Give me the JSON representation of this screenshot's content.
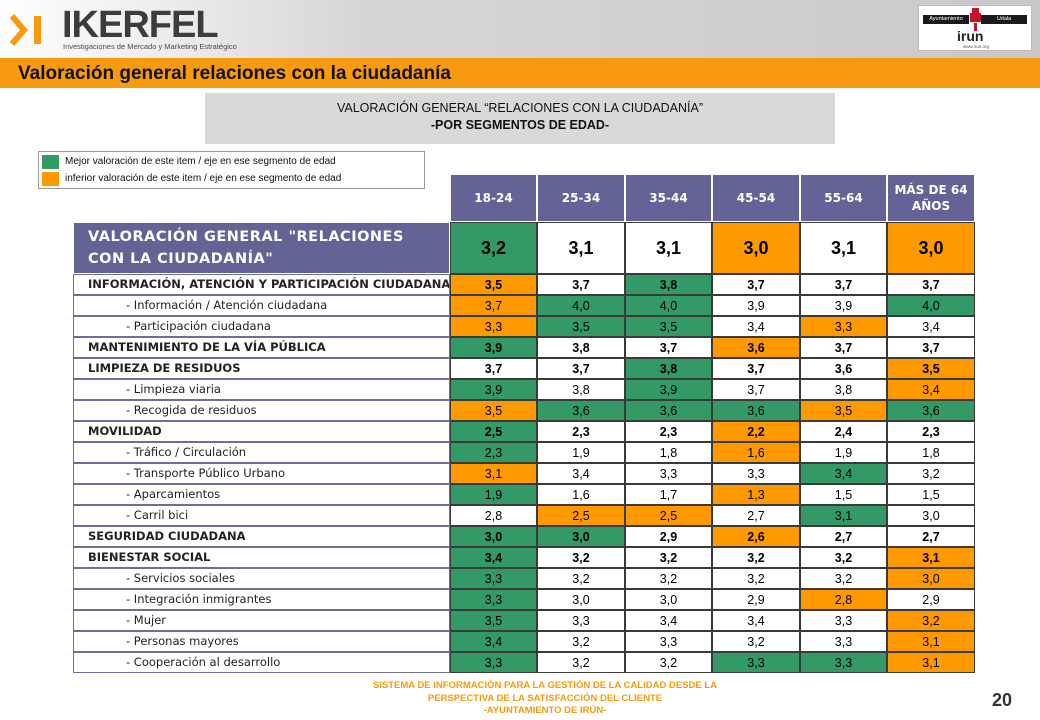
{
  "header": {
    "logo_name": "IKERFEL",
    "logo_tagline": "Investigaciones de Mercado y Marketing Estratégico",
    "partner_logo": {
      "left_label": "Ayuntamiento",
      "right_label": "Udala",
      "name": "irun",
      "url": "www.irun.org"
    }
  },
  "page_title": "Valoración general relaciones con la ciudadanía",
  "subtitle": {
    "line1": "VALORACIÓN GENERAL “RELACIONES CON LA CIUDADANÍA”",
    "line2": "-POR SEGMENTOS DE EDAD-"
  },
  "legend": {
    "items": [
      {
        "color": "#339966",
        "label": "Mejor valoración de este item / eje en ese segmento de edad"
      },
      {
        "color": "#ff9900",
        "label": "inferior valoración de este item / eje en ese segmento de edad"
      }
    ]
  },
  "table": {
    "columns": [
      "18-24",
      "25-34",
      "35-44",
      "45-54",
      "55-64",
      "MÁS DE 64 AÑOS"
    ],
    "summary": {
      "label_line1": "VALORACIÓN GENERAL \"RELACIONES",
      "label_line2": "CON LA CIUDADANÍA\"",
      "values": [
        "3,2",
        "3,1",
        "3,1",
        "3,0",
        "3,1",
        "3,0"
      ],
      "colors": [
        "g",
        "w",
        "w",
        "o",
        "w",
        "o"
      ]
    },
    "rows": [
      {
        "label": "INFORMACIÓN, ATENCIÓN Y PARTICIPACIÓN CIUDADANA",
        "level": "cat",
        "values": [
          "3,5",
          "3,7",
          "3,8",
          "3,7",
          "3,7",
          "3,7"
        ],
        "colors": [
          "o",
          "w",
          "g",
          "w",
          "w",
          "w"
        ]
      },
      {
        "label": "- Información / Atención ciudadana",
        "level": "sub",
        "values": [
          "3,7",
          "4,0",
          "4,0",
          "3,9",
          "3,9",
          "4,0"
        ],
        "colors": [
          "o",
          "g",
          "g",
          "w",
          "w",
          "g"
        ]
      },
      {
        "label": "- Participación ciudadana",
        "level": "sub",
        "values": [
          "3,3",
          "3,5",
          "3,5",
          "3,4",
          "3,3",
          "3,4"
        ],
        "colors": [
          "o",
          "g",
          "g",
          "w",
          "o",
          "w"
        ]
      },
      {
        "label": "MANTENIMIENTO DE LA VÍA PÚBLICA",
        "level": "cat",
        "values": [
          "3,9",
          "3,8",
          "3,7",
          "3,6",
          "3,7",
          "3,7"
        ],
        "colors": [
          "g",
          "w",
          "w",
          "o",
          "w",
          "w"
        ]
      },
      {
        "label": "LIMPIEZA DE RESIDUOS",
        "level": "cat",
        "values": [
          "3,7",
          "3,7",
          "3,8",
          "3,7",
          "3,6",
          "3,5"
        ],
        "colors": [
          "w",
          "w",
          "g",
          "w",
          "w",
          "o"
        ]
      },
      {
        "label": "- Limpieza viaria",
        "level": "sub",
        "values": [
          "3,9",
          "3,8",
          "3,9",
          "3,7",
          "3,8",
          "3,4"
        ],
        "colors": [
          "g",
          "w",
          "g",
          "w",
          "w",
          "o"
        ]
      },
      {
        "label": "- Recogida de residuos",
        "level": "sub",
        "values": [
          "3,5",
          "3,6",
          "3,6",
          "3,6",
          "3,5",
          "3,6"
        ],
        "colors": [
          "o",
          "g",
          "g",
          "g",
          "o",
          "g"
        ]
      },
      {
        "label": "MOVILIDAD",
        "level": "cat",
        "values": [
          "2,5",
          "2,3",
          "2,3",
          "2,2",
          "2,4",
          "2,3"
        ],
        "colors": [
          "g",
          "w",
          "w",
          "o",
          "w",
          "w"
        ]
      },
      {
        "label": "- Tráfico / Circulación",
        "level": "sub",
        "values": [
          "2,3",
          "1,9",
          "1,8",
          "1,6",
          "1,9",
          "1,8"
        ],
        "colors": [
          "g",
          "w",
          "w",
          "o",
          "w",
          "w"
        ]
      },
      {
        "label": "- Transporte Público Urbano",
        "level": "sub",
        "values": [
          "3,1",
          "3,4",
          "3,3",
          "3,3",
          "3,4",
          "3,2"
        ],
        "colors": [
          "o",
          "w",
          "w",
          "w",
          "g",
          "w"
        ]
      },
      {
        "label": "- Aparcamientos",
        "level": "sub",
        "values": [
          "1,9",
          "1,6",
          "1,7",
          "1,3",
          "1,5",
          "1,5"
        ],
        "colors": [
          "g",
          "w",
          "w",
          "o",
          "w",
          "w"
        ]
      },
      {
        "label": "- Carril bici",
        "level": "sub",
        "values": [
          "2,8",
          "2,5",
          "2,5",
          "2,7",
          "3,1",
          "3,0"
        ],
        "colors": [
          "w",
          "o",
          "o",
          "w",
          "g",
          "w"
        ]
      },
      {
        "label": "SEGURIDAD CIUDADANA",
        "level": "cat",
        "values": [
          "3,0",
          "3,0",
          "2,9",
          "2,6",
          "2,7",
          "2,7"
        ],
        "colors": [
          "g",
          "g",
          "w",
          "o",
          "w",
          "w"
        ]
      },
      {
        "label": "BIENESTAR SOCIAL",
        "level": "cat",
        "values": [
          "3,4",
          "3,2",
          "3,2",
          "3,2",
          "3,2",
          "3,1"
        ],
        "colors": [
          "g",
          "w",
          "w",
          "w",
          "w",
          "o"
        ]
      },
      {
        "label": "- Servicios sociales",
        "level": "sub",
        "values": [
          "3,3",
          "3,2",
          "3,2",
          "3,2",
          "3,2",
          "3,0"
        ],
        "colors": [
          "g",
          "w",
          "w",
          "w",
          "w",
          "o"
        ]
      },
      {
        "label": "- Integración inmigrantes",
        "level": "sub",
        "values": [
          "3,3",
          "3,0",
          "3,0",
          "2,9",
          "2,8",
          "2,9"
        ],
        "colors": [
          "g",
          "w",
          "w",
          "w",
          "o",
          "w"
        ]
      },
      {
        "label": "- Mujer",
        "level": "sub",
        "values": [
          "3,5",
          "3,3",
          "3,4",
          "3,4",
          "3,3",
          "3,2"
        ],
        "colors": [
          "g",
          "w",
          "w",
          "w",
          "w",
          "o"
        ]
      },
      {
        "label": "- Personas mayores",
        "level": "sub",
        "values": [
          "3,4",
          "3,2",
          "3,3",
          "3,2",
          "3,3",
          "3,1"
        ],
        "colors": [
          "g",
          "w",
          "w",
          "w",
          "w",
          "o"
        ]
      },
      {
        "label": "- Cooperación al desarrollo",
        "level": "sub",
        "values": [
          "3,3",
          "3,2",
          "3,2",
          "3,3",
          "3,3",
          "3,1"
        ],
        "colors": [
          "g",
          "w",
          "w",
          "g",
          "g",
          "o"
        ]
      }
    ]
  },
  "footer": {
    "line1": "SISTEMA DE INFORMACIÓN PARA LA GESTIÓN DE LA CALIDAD DESDE LA",
    "line2": "PERSPECTIVA DE LA SATISFACCIÓN DEL CLIENTE",
    "line3": "-AYUNTAMIENTO DE IRÚN-",
    "page_number": "20"
  }
}
